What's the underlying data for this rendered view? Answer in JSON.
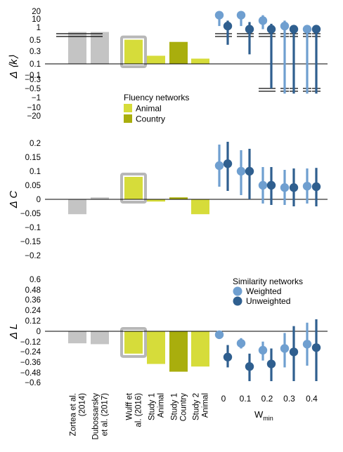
{
  "colors": {
    "prior": "#c4c4c4",
    "animal": "#d6dc3a",
    "country": "#a9ae0d",
    "weighted": "#6f9fd0",
    "unweighted": "#2f5f8f",
    "wulff_frame": "#b7b7b7",
    "axis": "#000000"
  },
  "x_labels": [
    "Zortea et al.\n(2014)",
    "Dubossarsky\net al. (2017)",
    "Wulff et\nal. (2016)",
    "Study 1\nAnimal",
    "Study 1\nCountry",
    "Study 2\nAnimal"
  ],
  "wmin_label": "W",
  "wmin_sub": "min",
  "wmin_ticks": [
    "0",
    "0.1",
    "0.2",
    "0.3",
    "0.4"
  ],
  "fluency_legend": {
    "title": "Fluency networks",
    "items": [
      {
        "label": "Animal",
        "color": "animal"
      },
      {
        "label": "Country",
        "color": "country"
      }
    ]
  },
  "similarity_legend": {
    "title": "Similarity networks",
    "items": [
      {
        "label": "Weighted",
        "color": "weighted"
      },
      {
        "label": "Unweighted",
        "color": "unweighted"
      }
    ]
  },
  "chart_data": [
    {
      "type": "bar",
      "ylabel": "Δ ⟨k⟩",
      "yscale": "broken (symmetric, compressed beyond ±0.5)",
      "ticks": [
        "20",
        "10",
        "1",
        "0.5",
        "0.3",
        "0.1",
        "−0.1",
        "−0.3",
        "−0.5",
        "−1",
        "−10",
        "−20"
      ],
      "bars": [
        {
          "study": "Zortea et al. (2014)",
          "value": 1.4,
          "color": "prior",
          "truncated": true
        },
        {
          "study": "Dubossarsky et al. (2017)",
          "value": 1.4,
          "color": "prior",
          "truncated": true
        },
        {
          "study": "Wulff et al. (2016)",
          "value": 0.52,
          "color": "animal",
          "framed": true
        },
        {
          "study": "Study 1 Animal",
          "value": 0.17,
          "color": "animal"
        },
        {
          "study": "Study 1 Country",
          "value": 0.46,
          "color": "country"
        },
        {
          "study": "Study 2 Animal",
          "value": 0.11,
          "color": "animal"
        }
      ],
      "similarity": {
        "wmin": [
          0,
          0.1,
          0.2,
          0.3,
          0.4
        ],
        "weighted": {
          "mean": [
            12,
            12,
            6,
            3,
            2
          ],
          "low": [
            3,
            3,
            2,
            -1,
            -1
          ],
          "high": [
            20,
            20,
            12,
            6,
            3
          ]
        },
        "unweighted": {
          "mean": [
            3,
            2,
            2,
            2,
            2
          ],
          "low": [
            0.4,
            0.2,
            -0.5,
            -1,
            -1
          ],
          "high": [
            6,
            5,
            4,
            3,
            3
          ]
        }
      }
    },
    {
      "type": "bar",
      "ylabel": "Δ C",
      "ylim": [
        -0.2,
        0.2
      ],
      "ticks": [
        "0.2",
        "0.15",
        "0.1",
        "0.05",
        "0",
        "−0.05",
        "−0.1",
        "−0.15",
        "−0.2"
      ],
      "bars": [
        {
          "study": "Zortea et al. (2014)",
          "value": -0.053,
          "color": "prior"
        },
        {
          "study": "Dubossarsky et al. (2017)",
          "value": 0.007,
          "color": "prior"
        },
        {
          "study": "Wulff et al. (2016)",
          "value": 0.08,
          "color": "animal",
          "framed": true
        },
        {
          "study": "Study 1 Animal",
          "value": -0.008,
          "color": "animal"
        },
        {
          "study": "Study 1 Country",
          "value": 0.007,
          "color": "country"
        },
        {
          "study": "Study 2 Animal",
          "value": -0.053,
          "color": "animal"
        }
      ],
      "similarity": {
        "wmin": [
          0,
          0.1,
          0.2,
          0.3,
          0.4
        ],
        "weighted": {
          "mean": [
            0.12,
            0.1,
            0.05,
            0.042,
            0.047
          ],
          "low": [
            0.045,
            0.015,
            -0.015,
            -0.02,
            -0.015
          ],
          "high": [
            0.195,
            0.175,
            0.115,
            0.105,
            0.11
          ]
        },
        "unweighted": {
          "mean": [
            0.127,
            0.1,
            0.05,
            0.042,
            0.045
          ],
          "low": [
            0.03,
            0.0,
            -0.02,
            -0.025,
            -0.025
          ],
          "high": [
            0.205,
            0.18,
            0.115,
            0.11,
            0.112
          ]
        }
      }
    },
    {
      "type": "bar",
      "ylabel": "Δ L",
      "ylim": [
        -0.6,
        0.6
      ],
      "ticks": [
        "0.6",
        "0.48",
        "0.36",
        "0.24",
        "0.12",
        "0",
        "−0.12",
        "−0.24",
        "−0.36",
        "−0.48",
        "−0.6"
      ],
      "bars": [
        {
          "study": "Zortea et al. (2014)",
          "value": -0.14,
          "color": "prior"
        },
        {
          "study": "Dubossarsky et al. (2017)",
          "value": -0.15,
          "color": "prior"
        },
        {
          "study": "Wulff et al. (2016)",
          "value": -0.26,
          "color": "animal",
          "framed": true
        },
        {
          "study": "Study 1 Animal",
          "value": -0.38,
          "color": "animal"
        },
        {
          "study": "Study 1 Country",
          "value": -0.47,
          "color": "country"
        },
        {
          "study": "Study 2 Animal",
          "value": -0.41,
          "color": "animal"
        }
      ],
      "similarity": {
        "wmin": [
          0,
          0.1,
          0.2,
          0.3,
          0.4
        ],
        "weighted": {
          "mean": [
            -0.04,
            -0.14,
            -0.22,
            -0.2,
            -0.15
          ],
          "low": [
            -0.06,
            -0.2,
            -0.34,
            -0.42,
            -0.4
          ],
          "high": [
            -0.02,
            -0.08,
            -0.12,
            -0.02,
            0.1
          ]
        },
        "unweighted": {
          "mean": [
            -0.3,
            -0.41,
            -0.38,
            -0.24,
            -0.19
          ],
          "low": [
            -0.42,
            -0.58,
            -0.58,
            -0.58,
            -0.58
          ],
          "high": [
            -0.16,
            -0.26,
            -0.2,
            0.06,
            0.14
          ]
        }
      }
    }
  ]
}
